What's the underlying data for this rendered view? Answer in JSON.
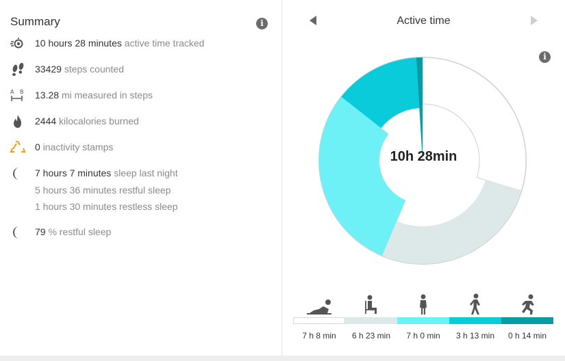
{
  "summary": {
    "title": "Summary",
    "info_icon": "info-icon",
    "rows": [
      {
        "icon": "active-time-icon",
        "value": "10 hours 28 minutes",
        "label": "active time tracked"
      },
      {
        "icon": "footsteps-icon",
        "value": "33429",
        "label": "steps counted"
      },
      {
        "icon": "distance-ab-icon",
        "value": "13.28",
        "label": "mi measured in steps"
      },
      {
        "icon": "flame-icon",
        "value": "2444",
        "label": "kilocalories burned"
      },
      {
        "icon": "inactivity-stamp-icon",
        "value": "0",
        "label": "inactivity stamps"
      },
      {
        "icon": "moon-icon",
        "value": "7 hours 7 minutes",
        "label": "sleep last night"
      },
      {
        "icon": "moon-icon",
        "value": "79",
        "label": "% restful sleep"
      }
    ],
    "sleep_details": [
      "5 hours 36 minutes restful sleep",
      "1 hours 30 minutes restless sleep"
    ]
  },
  "chart_panel": {
    "title": "Active time",
    "prev_icon": "chevron-left-icon",
    "next_icon": "chevron-right-icon",
    "info_icon": "info-icon",
    "center_label": "10h 28min"
  },
  "chart_data": {
    "type": "pie",
    "variant": "donut",
    "categories": [
      "Lying",
      "Sitting",
      "Standing",
      "Walking",
      "Running"
    ],
    "values_minutes": [
      428,
      383,
      420,
      193,
      14
    ],
    "labels": [
      "7 h 8 min",
      "6 h 23 min",
      "7 h 0 min",
      "3 h 13 min",
      "0 h 14 min"
    ],
    "colors": [
      "#ffffff",
      "#dde9e9",
      "#6ef0f7",
      "#09cbd9",
      "#0a9aa3"
    ],
    "legend_icons": [
      "lying-person-icon",
      "sitting-person-icon",
      "standing-person-icon",
      "walking-person-icon",
      "running-person-icon"
    ],
    "active_total_minutes": 628
  }
}
